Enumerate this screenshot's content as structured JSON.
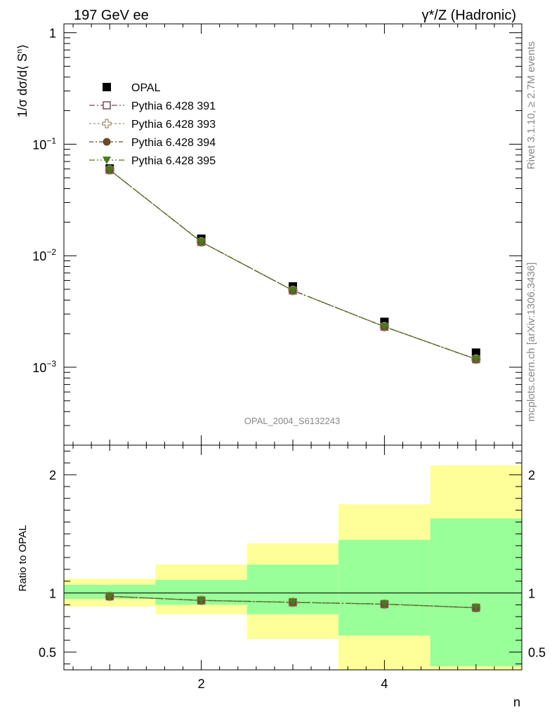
{
  "header": {
    "left_title": "197 GeV ee",
    "right_title": "γ*/Z (Hadronic)"
  },
  "side_labels": {
    "rivet": "Rivet 3.1.10, ≥ 2.7M events",
    "mcplots": "mcplots.cern.ch [arXiv:1306.3436]"
  },
  "watermark": "OPAL_2004_S6132243",
  "chart_data": [
    {
      "type": "line",
      "panel": "main",
      "ylabel": "1/σ dσ/d⟨ S",
      "ylabel_sup": "n",
      "ylabel_end": "⟩",
      "yscale": "log",
      "xlim": [
        0.5,
        5.5
      ],
      "ylim": [
        0.0002,
        1.2
      ],
      "ytick_labels": [
        {
          "base": "1",
          "exp": "",
          "value": 1
        },
        {
          "base": "10",
          "exp": "−1",
          "value": 0.1
        },
        {
          "base": "10",
          "exp": "−2",
          "value": 0.01
        },
        {
          "base": "10",
          "exp": "−3",
          "value": 0.001
        }
      ],
      "x": [
        1,
        2,
        3,
        4,
        5
      ],
      "data": {
        "name": "OPAL",
        "values": [
          0.0605,
          0.0142,
          0.0053,
          0.00255,
          0.00135
        ],
        "color": "#000000"
      },
      "series": [
        {
          "name": "Pythia 6.428 391",
          "marker": "open-square",
          "color": "#7b4a5e",
          "values": [
            0.0588,
            0.0133,
            0.00488,
            0.00231,
            0.00118
          ]
        },
        {
          "name": "Pythia 6.428 393",
          "marker": "open-cross",
          "color": "#a09070",
          "values": [
            0.0588,
            0.0133,
            0.00488,
            0.00231,
            0.00118
          ]
        },
        {
          "name": "Pythia 6.428 394",
          "marker": "filled-circle",
          "color": "#6b4a2a",
          "values": [
            0.0588,
            0.0133,
            0.00488,
            0.00231,
            0.00118
          ]
        },
        {
          "name": "Pythia 6.428 395",
          "marker": "filled-triangle-down",
          "color": "#4a7a1a",
          "values": [
            0.0588,
            0.0133,
            0.00488,
            0.00231,
            0.00118
          ]
        }
      ]
    },
    {
      "type": "line",
      "panel": "ratio",
      "ylabel": "Ratio to OPAL",
      "xlabel": "n",
      "ylim": [
        0.35,
        2.25
      ],
      "ytick_labels": [
        "0.5",
        "1",
        "2"
      ],
      "ytick_values": [
        0.5,
        1,
        2
      ],
      "xtick_labels": [
        "2",
        "4"
      ],
      "xtick_values": [
        2,
        4
      ],
      "x": [
        1,
        2,
        3,
        4,
        5
      ],
      "values": [
        0.972,
        0.937,
        0.921,
        0.906,
        0.875
      ],
      "bands": [
        {
          "x": [
            0.5,
            1.5
          ],
          "yellow": [
            0.885,
            1.12
          ],
          "green": [
            0.95,
            1.07
          ]
        },
        {
          "x": [
            1.5,
            2.5
          ],
          "yellow": [
            0.82,
            1.24
          ],
          "green": [
            0.9,
            1.11
          ]
        },
        {
          "x": [
            2.5,
            3.5
          ],
          "yellow": [
            0.61,
            1.42
          ],
          "green": [
            0.82,
            1.24
          ]
        },
        {
          "x": [
            3.5,
            4.5
          ],
          "yellow": [
            0.35,
            1.75
          ],
          "green": [
            0.64,
            1.45
          ]
        },
        {
          "x": [
            4.5,
            5.5
          ],
          "yellow": [
            0.35,
            2.08
          ],
          "green": [
            0.38,
            1.63
          ]
        }
      ],
      "colors": {
        "yellow": "#ffff99",
        "green": "#99ff99"
      }
    }
  ]
}
